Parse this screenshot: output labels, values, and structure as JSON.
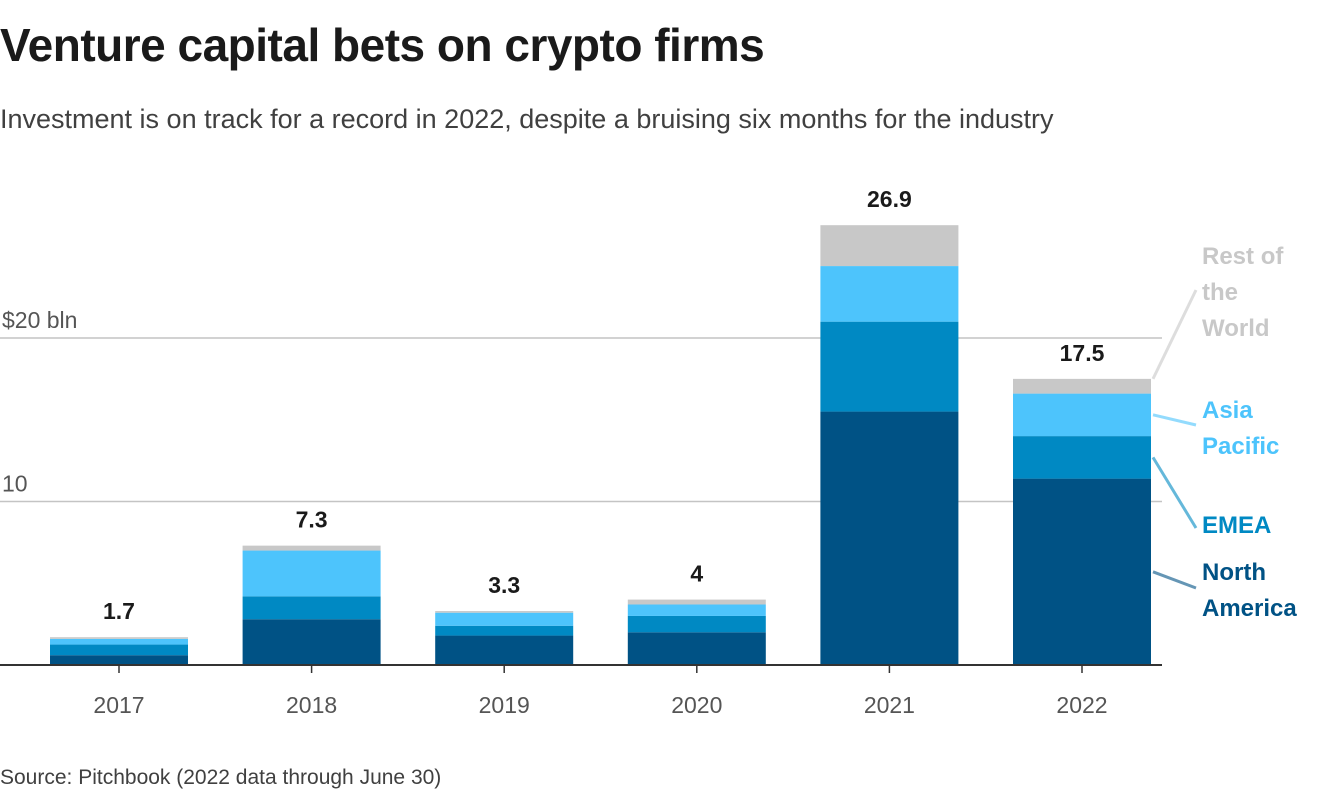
{
  "title": "Venture capital bets on crypto firms",
  "subtitle": "Investment is on track for a record in 2022, despite a bruising six months for the industry",
  "source": "Source: Pitchbook (2022 data through June 30)",
  "chart_data": {
    "type": "bar",
    "stacked": true,
    "categories": [
      "2017",
      "2018",
      "2019",
      "2020",
      "2021",
      "2022"
    ],
    "series": [
      {
        "name": "North America",
        "legend_lines": [
          "North",
          "America"
        ],
        "color": "#005285",
        "values": [
          0.6,
          2.8,
          1.8,
          2.0,
          15.5,
          11.4
        ]
      },
      {
        "name": "EMEA",
        "legend_lines": [
          "EMEA"
        ],
        "color": "#0089c3",
        "values": [
          0.65,
          1.4,
          0.6,
          1.0,
          5.5,
          2.6
        ]
      },
      {
        "name": "Asia Pacific",
        "legend_lines": [
          "Asia",
          "Pacific"
        ],
        "color": "#4dc4fc",
        "values": [
          0.35,
          2.8,
          0.8,
          0.7,
          3.4,
          2.6
        ]
      },
      {
        "name": "Rest of the World",
        "legend_lines": [
          "Rest of",
          "the",
          "World"
        ],
        "color": "#c8c8c8",
        "values": [
          0.1,
          0.3,
          0.1,
          0.3,
          2.5,
          0.9
        ]
      }
    ],
    "totals": [
      "1.7",
      "7.3",
      "3.3",
      "4",
      "26.9",
      "17.5"
    ],
    "y_ticks": [
      {
        "value": 10,
        "label": "10"
      },
      {
        "value": 20,
        "label": "$20 bln"
      }
    ],
    "ylim": [
      0,
      30
    ],
    "grid": true,
    "legend_position": "right, inline labels"
  }
}
